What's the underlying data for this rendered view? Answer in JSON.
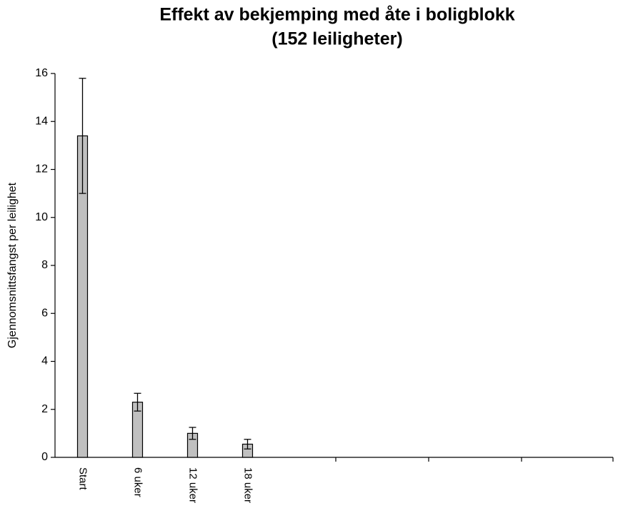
{
  "chart_data": {
    "type": "bar",
    "title": "Effekt av bekjemping med åte i boligblokk",
    "subtitle": "(152 leiligheter)",
    "y_label": "Gjennomsnittsfangst per leilighet",
    "categories": [
      "Start",
      "6 uker",
      "12 uker",
      "18 uker"
    ],
    "values": [
      13.4,
      2.3,
      1.0,
      0.55
    ],
    "errors": [
      2.4,
      0.37,
      0.25,
      0.2
    ],
    "color": "#c0c0c0",
    "ylim": [
      0,
      16
    ],
    "yticks": [
      0,
      2,
      4,
      6,
      8,
      10,
      12,
      14,
      16
    ],
    "grid": false
  }
}
